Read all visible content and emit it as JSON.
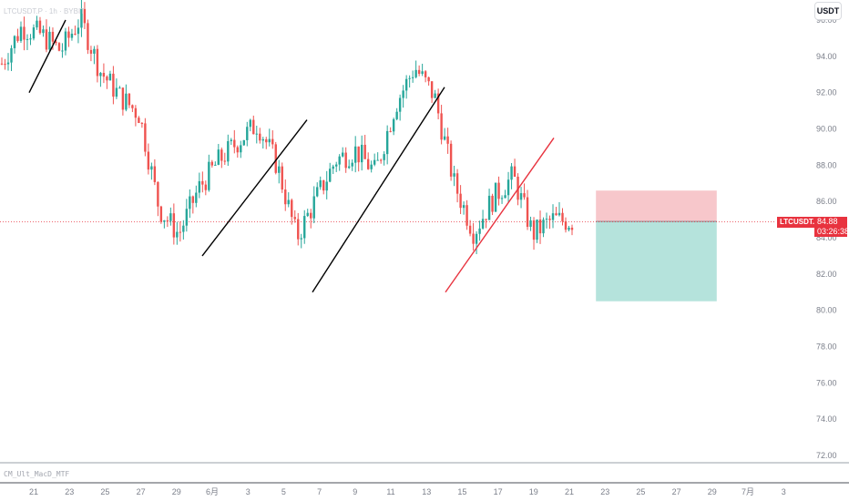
{
  "header": {
    "symbol_line": "LTCUSDT.P · 1h · BYBIT",
    "currency_button": "USDT"
  },
  "indicator": {
    "name": "CM_Ult_MacD_MTF"
  },
  "price_label": {
    "symbol": "LTCUSDT.P",
    "price": "84.88",
    "countdown": "03:26:38"
  },
  "colors": {
    "up": "#26a69a",
    "down": "#ef5350",
    "last_price": "#e8333f",
    "stop_zone": "#f7c7cb",
    "target_zone": "#b5e3dc",
    "red_trendline": "#e8333f"
  },
  "chart_data": {
    "type": "candlestick",
    "ylim": [
      71.5,
      96.5
    ],
    "y_ticks": [
      "72.00",
      "74.00",
      "76.00",
      "78.00",
      "80.00",
      "82.00",
      "84.00",
      "86.00",
      "88.00",
      "90.00",
      "92.00",
      "94.00",
      "96.00"
    ],
    "x_ticks": [
      "21",
      "23",
      "25",
      "27",
      "29",
      "6月",
      "3",
      "5",
      "7",
      "9",
      "11",
      "13",
      "15",
      "17",
      "19",
      "21",
      "23",
      "25",
      "27",
      "29",
      "7月",
      "3"
    ],
    "last_price": 84.88,
    "close_path": [
      93.6,
      95.6,
      95.2,
      94.3,
      96.1,
      93.2,
      91.8,
      90.8,
      85.6,
      84.2,
      86.7,
      88.2,
      89.3,
      90.3,
      88.0,
      84.0,
      86.2,
      88.3,
      88.8,
      87.6,
      91.3,
      93.4,
      91.8,
      87.0,
      84.3,
      86.2,
      87.4,
      84.2,
      85.0,
      84.9
    ],
    "close_path_note_free": true,
    "trendlines": [
      {
        "color": "black",
        "from": [
          "19",
          92.0
        ],
        "to": [
          "22",
          96.0
        ]
      },
      {
        "color": "black",
        "from": [
          "30",
          83.0
        ],
        "to": [
          "4",
          90.5
        ]
      },
      {
        "color": "black",
        "from": [
          "6",
          81.0
        ],
        "to": [
          "12",
          92.3
        ]
      },
      {
        "color": "red",
        "from": [
          "13",
          81.0
        ],
        "to": [
          "18",
          89.5
        ]
      }
    ],
    "position": {
      "entry": 84.9,
      "stop": 86.6,
      "target": 80.5
    }
  }
}
